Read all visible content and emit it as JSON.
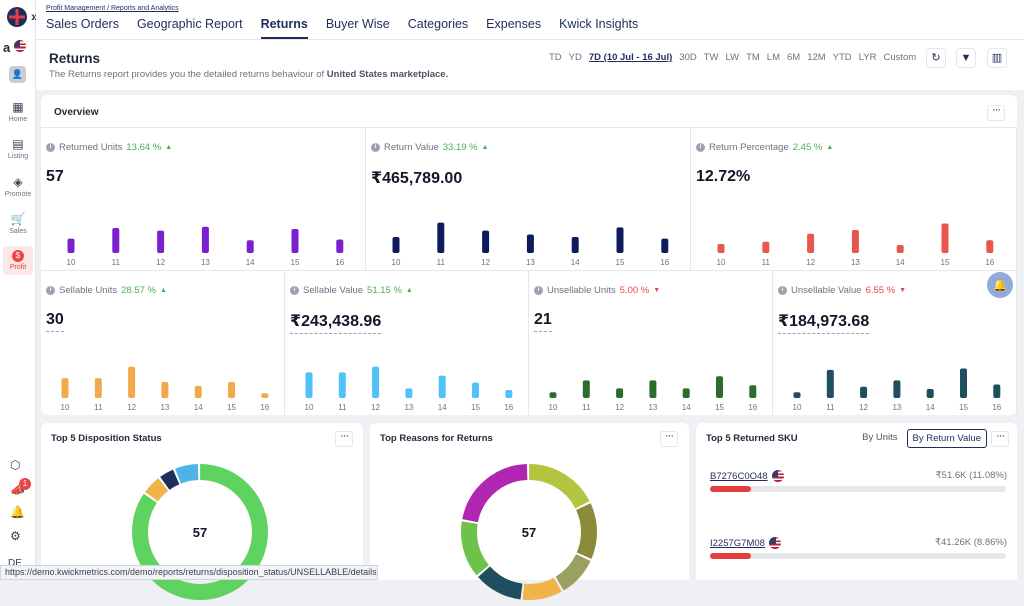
{
  "breadcrumb": "Profit Management / Reports and Analytics",
  "tabs": [
    "Sales Orders",
    "Geographic Report",
    "Returns",
    "Buyer Wise",
    "Categories",
    "Expenses",
    "Kwick Insights"
  ],
  "active_tab": "Returns",
  "sidebar": {
    "marketplace": "a",
    "items": [
      {
        "label": "Home",
        "icon": "grid-icon"
      },
      {
        "label": "Listing",
        "icon": "listing-icon"
      },
      {
        "label": "Promote",
        "icon": "megaphone-icon"
      },
      {
        "label": "Sales",
        "icon": "cart-icon"
      },
      {
        "label": "Profit",
        "icon": "dollar-icon"
      }
    ],
    "notif_count": "1",
    "user_initials": "DE"
  },
  "header": {
    "title": "Returns",
    "subtitle_prefix": "The Returns report provides you the detailed returns behaviour of ",
    "subtitle_bold": "United States marketplace.",
    "ranges": [
      "TD",
      "YD",
      "7D (10 Jul - 16 Jul)",
      "30D",
      "TW",
      "LW",
      "TM",
      "LM",
      "6M",
      "12M",
      "YTD",
      "LYR",
      "Custom"
    ],
    "selected_range": "7D (10 Jul - 16 Jul)"
  },
  "overview": {
    "title": "Overview",
    "days": [
      "10",
      "11",
      "12",
      "13",
      "14",
      "15",
      "16"
    ],
    "metrics": [
      {
        "label": "Returned Units",
        "change": "13.64 %",
        "dir": "up",
        "value": "57",
        "color": "#7b1fd1",
        "bars": [
          0.45,
          0.78,
          0.7,
          0.82,
          0.4,
          0.75,
          0.42
        ]
      },
      {
        "label": "Return Value",
        "change": "33.19 %",
        "dir": "up",
        "value": "₹465,789.00",
        "color": "#0d1b5c",
        "bars": [
          0.5,
          0.95,
          0.7,
          0.58,
          0.5,
          0.8,
          0.45
        ]
      },
      {
        "label": "Return Percentage",
        "change": "2.45 %",
        "dir": "up",
        "value": "12.72%",
        "color": "#e8574b",
        "bars": [
          0.28,
          0.35,
          0.6,
          0.72,
          0.25,
          0.92,
          0.4
        ]
      },
      {
        "label": "Sellable Units",
        "change": "28.57 %",
        "dir": "up",
        "value": "30",
        "color": "#f0a94b",
        "bars": [
          0.62,
          0.62,
          0.98,
          0.5,
          0.38,
          0.5,
          0.15
        ]
      },
      {
        "label": "Sellable Value",
        "change": "51.15 %",
        "dir": "up",
        "value": "₹243,438.96",
        "color": "#4fc3f7",
        "bars": [
          0.8,
          0.8,
          0.98,
          0.3,
          0.7,
          0.48,
          0.25
        ]
      },
      {
        "label": "Unsellable Units",
        "change": "5.00 %",
        "dir": "down",
        "value": "21",
        "color": "#2e6b2f",
        "bars": [
          0.18,
          0.55,
          0.3,
          0.55,
          0.3,
          0.68,
          0.4
        ]
      },
      {
        "label": "Unsellable Value",
        "change": "6.55 %",
        "dir": "down",
        "value": "₹184,973.68",
        "color": "#1f4e5f",
        "bars": [
          0.18,
          0.88,
          0.35,
          0.55,
          0.28,
          0.92,
          0.42
        ]
      }
    ]
  },
  "disposition": {
    "title": "Top 5 Disposition Status",
    "center": "57",
    "segments": [
      {
        "value": 0.85,
        "color": "#5fd35f"
      },
      {
        "value": 0.05,
        "color": "#f0b44a"
      },
      {
        "value": 0.04,
        "color": "#1f2d5c"
      },
      {
        "value": 0.06,
        "color": "#4fb3e8"
      }
    ]
  },
  "reasons": {
    "title": "Top Reasons for Returns",
    "center": "57",
    "segments": [
      {
        "value": 0.18,
        "color": "#b4c441"
      },
      {
        "value": 0.14,
        "color": "#8b8b3a"
      },
      {
        "value": 0.1,
        "color": "#9aa060"
      },
      {
        "value": 0.1,
        "color": "#f0b44a"
      },
      {
        "value": 0.12,
        "color": "#1f4e5f"
      },
      {
        "value": 0.14,
        "color": "#6cc24a"
      },
      {
        "value": 0.22,
        "color": "#b026b0"
      }
    ]
  },
  "sku": {
    "title": "Top 5 Returned SKU",
    "toggle_units": "By Units",
    "toggle_value": "By Return Value",
    "items": [
      {
        "sku": "B7276C0O48",
        "value": "₹51.6K (11.08%)",
        "fill": 0.14
      },
      {
        "sku": "I2257G7M08",
        "value": "₹41.26K (8.86%)",
        "fill": 0.14
      }
    ]
  },
  "status_url": "https://demo.kwickmetrics.com/demo/reports/returns/disposition_status/UNSELLABLE/details"
}
